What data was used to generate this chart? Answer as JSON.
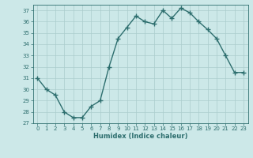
{
  "x": [
    0,
    1,
    2,
    3,
    4,
    5,
    6,
    7,
    8,
    9,
    10,
    11,
    12,
    13,
    14,
    15,
    16,
    17,
    18,
    19,
    20,
    21,
    22,
    23
  ],
  "y": [
    31,
    30,
    29.5,
    28,
    27.5,
    27.5,
    28.5,
    29,
    32,
    34.5,
    35.5,
    36.5,
    36,
    35.8,
    37,
    36.3,
    37.2,
    36.8,
    36,
    35.3,
    34.5,
    33,
    31.5,
    31.5
  ],
  "xlabel": "Humidex (Indice chaleur)",
  "xlim": [
    -0.5,
    23.5
  ],
  "ylim": [
    27,
    37.5
  ],
  "yticks": [
    27,
    28,
    29,
    30,
    31,
    32,
    33,
    34,
    35,
    36,
    37
  ],
  "xticks": [
    0,
    1,
    2,
    3,
    4,
    5,
    6,
    7,
    8,
    9,
    10,
    11,
    12,
    13,
    14,
    15,
    16,
    17,
    18,
    19,
    20,
    21,
    22,
    23
  ],
  "line_color": "#2d6e6e",
  "bg_color": "#cce8e8",
  "grid_color": "#aacccc",
  "font_color": "#2d6e6e"
}
